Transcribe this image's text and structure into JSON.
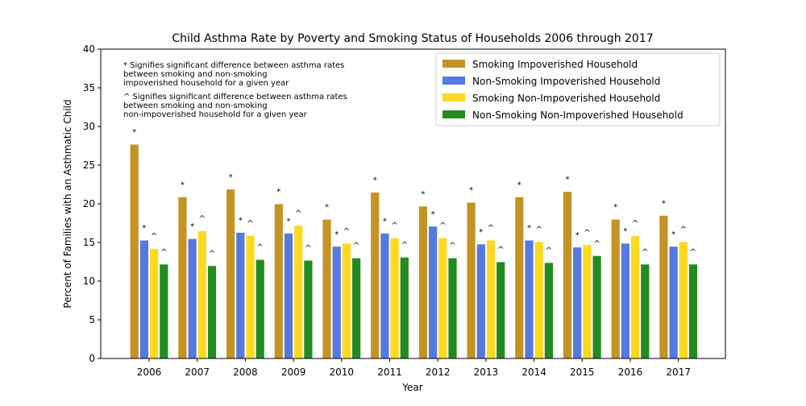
{
  "chart_data": {
    "type": "bar",
    "title": "Child Asthma Rate by Poverty and Smoking Status of Households 2006 through 2017",
    "xlabel": "Year",
    "ylabel": "Percent of Families with an Asthmatic Child",
    "ylim": [
      0,
      40
    ],
    "yticks": [
      "0",
      "5",
      "10",
      "15",
      "20",
      "25",
      "30",
      "35",
      "40"
    ],
    "grid": false,
    "legend_position": "top-right",
    "categories": [
      "2006",
      "2007",
      "2008",
      "2009",
      "2010",
      "2011",
      "2012",
      "2013",
      "2014",
      "2015",
      "2016",
      "2017"
    ],
    "series": [
      {
        "name": "Smoking Impoverished Household",
        "color": "#C39325",
        "values": [
          27.7,
          20.9,
          21.9,
          20.0,
          18.0,
          21.5,
          19.7,
          20.2,
          20.9,
          21.6,
          18.0,
          18.5
        ],
        "markers": [
          "*",
          "*",
          "*",
          "*",
          "*",
          "*",
          "*",
          "*",
          "*",
          "*",
          "*",
          "*"
        ]
      },
      {
        "name": "Non-Smoking Impoverished Household",
        "color": "#5479E0",
        "values": [
          15.3,
          15.5,
          16.3,
          16.2,
          14.5,
          16.2,
          17.1,
          14.8,
          15.3,
          14.4,
          14.9,
          14.5
        ],
        "markers": [
          "*",
          "*",
          "*",
          "*",
          "*",
          "*",
          "*",
          "*",
          "*",
          "*",
          "*",
          "*"
        ]
      },
      {
        "name": "Smoking Non-Impoverished Household",
        "color": "#FFD820",
        "values": [
          14.2,
          16.5,
          15.9,
          17.2,
          14.9,
          15.6,
          15.6,
          15.3,
          15.1,
          14.7,
          15.9,
          15.1
        ],
        "markers": [
          "^",
          "^",
          "^",
          "^",
          "^",
          "^",
          "^",
          "^",
          "^",
          "^",
          "^",
          "^"
        ]
      },
      {
        "name": "Non-Smoking Non-Impoverished Household",
        "color": "#228B22",
        "values": [
          12.2,
          12.0,
          12.8,
          12.7,
          13.0,
          13.1,
          13.0,
          12.5,
          12.4,
          13.3,
          12.2,
          12.2
        ],
        "markers": [
          "^",
          "^",
          "^",
          "^",
          "^",
          "^",
          "^",
          "^",
          "^",
          "^",
          "^",
          "^"
        ]
      }
    ],
    "annotations": [
      [
        "* Signifies significant difference between asthma rates",
        "      between smoking and non-smoking",
        "      impoverished household for a given year"
      ],
      [
        "^ Signifies significant difference between asthma rates",
        "      between smoking and non-smoking",
        "      non-impoverished household for a given year"
      ]
    ]
  }
}
